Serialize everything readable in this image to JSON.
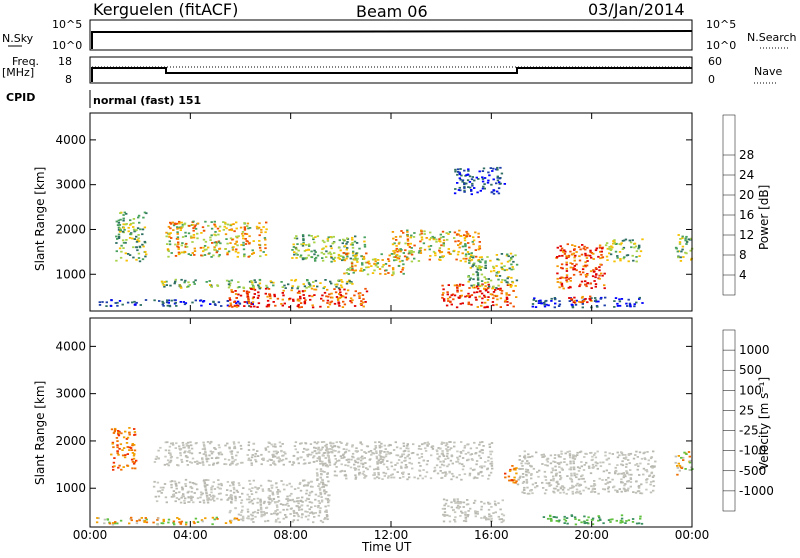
{
  "header": {
    "station": "Kerguelen (fitACF)",
    "beam": "Beam 06",
    "date": "03/Jan/2014"
  },
  "top_panels": {
    "nsky_label": "N.Sky",
    "nsky_ticks": [
      "10^5",
      "10^0"
    ],
    "nsearch_label": "N.Search",
    "nsearch_ticks": [
      "10^5",
      "10^0"
    ],
    "freq_label_1": "Freq.",
    "freq_label_2": "[MHz]",
    "freq_ticks": [
      "18",
      "8"
    ],
    "nave_label": "Nave",
    "nave_ticks": [
      "60",
      "0"
    ],
    "cpid_label": "CPID",
    "cpid_value": "normal (fast) 151"
  },
  "chart_data": [
    {
      "type": "heatmap",
      "name": "power",
      "ylabel": "Slant Range [km]",
      "xlabel": "Time UT",
      "xlim": [
        "00:00",
        "24:00"
      ],
      "ylim": [
        180,
        4600
      ],
      "yticks": [
        "1000",
        "2000",
        "3000",
        "4000"
      ],
      "xticks": [
        "00:00",
        "04:00",
        "08:00",
        "12:00",
        "16:00",
        "20:00",
        "00:00"
      ],
      "colorbar": {
        "label": "Power [dB]",
        "ticks": [
          "4",
          "8",
          "12",
          "16",
          "20",
          "24",
          "28"
        ],
        "colors": [
          "#0000ff",
          "#1e3fa8",
          "#2f6e62",
          "#47a05c",
          "#a7d24a",
          "#f6c000",
          "#f39a00",
          "#f05000",
          "#e00000"
        ]
      },
      "regions": [
        {
          "t0": 0.3,
          "t1": 6.5,
          "r0": 300,
          "r1": 450,
          "level": "low"
        },
        {
          "t0": 1.0,
          "t1": 2.2,
          "r0": 1300,
          "r1": 2400,
          "level": "mid"
        },
        {
          "t0": 2.8,
          "t1": 10.5,
          "r0": 700,
          "r1": 900,
          "level": "mid"
        },
        {
          "t0": 3.0,
          "t1": 7.0,
          "r0": 1400,
          "r1": 2200,
          "level": "high"
        },
        {
          "t0": 5.5,
          "t1": 11.0,
          "r0": 280,
          "r1": 700,
          "level": "peak"
        },
        {
          "t0": 8.0,
          "t1": 11.0,
          "r0": 1300,
          "r1": 1900,
          "level": "mid"
        },
        {
          "t0": 10.0,
          "t1": 12.5,
          "r0": 1000,
          "r1": 1500,
          "level": "high"
        },
        {
          "t0": 12.0,
          "t1": 15.5,
          "r0": 1300,
          "r1": 2000,
          "level": "high"
        },
        {
          "t0": 14.5,
          "t1": 16.5,
          "r0": 2800,
          "r1": 3400,
          "level": "low"
        },
        {
          "t0": 14.0,
          "t1": 17.0,
          "r0": 280,
          "r1": 800,
          "level": "peak"
        },
        {
          "t0": 15.0,
          "t1": 17.0,
          "r0": 700,
          "r1": 1500,
          "level": "mid"
        },
        {
          "t0": 17.5,
          "t1": 22.0,
          "r0": 280,
          "r1": 500,
          "level": "low"
        },
        {
          "t0": 18.5,
          "t1": 20.5,
          "r0": 700,
          "r1": 1700,
          "level": "peak"
        },
        {
          "t0": 19.0,
          "t1": 20.0,
          "r0": 380,
          "r1": 550,
          "level": "peak"
        },
        {
          "t0": 20.5,
          "t1": 22.0,
          "r0": 1300,
          "r1": 1800,
          "level": "mid"
        },
        {
          "t0": 23.3,
          "t1": 24.0,
          "r0": 1300,
          "r1": 1900,
          "level": "mid"
        }
      ]
    },
    {
      "type": "heatmap",
      "name": "velocity",
      "ylabel": "Slant Range [km]",
      "xlabel": "Time UT",
      "xlim": [
        "00:00",
        "24:00"
      ],
      "ylim": [
        180,
        4600
      ],
      "yticks": [
        "1000",
        "2000",
        "3000",
        "4000"
      ],
      "xticks": [
        "00:00",
        "04:00",
        "08:00",
        "12:00",
        "16:00",
        "20:00",
        "00:00"
      ],
      "colorbar": {
        "label": "Velocity [m s⁻¹]",
        "ticks": [
          "1000",
          "500",
          "100",
          "25",
          "-25",
          "-100",
          "-500",
          "-1000"
        ],
        "colors": [
          "#2040c0",
          "#3070a0",
          "#3a9060",
          "#60c040",
          "#c0c0b8",
          "#f0a000",
          "#f07000",
          "#f03000",
          "#e00000"
        ]
      },
      "regions": [
        {
          "t0": 0.8,
          "t1": 1.8,
          "r0": 1400,
          "r1": 2300,
          "level": "neg"
        },
        {
          "t0": 2.5,
          "t1": 10.0,
          "r0": 1500,
          "r1": 2000,
          "level": "grey"
        },
        {
          "t0": 2.5,
          "t1": 9.5,
          "r0": 700,
          "r1": 1200,
          "level": "grey"
        },
        {
          "t0": 5.5,
          "t1": 9.5,
          "r0": 300,
          "r1": 800,
          "level": "grey"
        },
        {
          "t0": 9.0,
          "t1": 16.0,
          "r0": 1200,
          "r1": 2000,
          "level": "grey"
        },
        {
          "t0": 14.0,
          "t1": 16.5,
          "r0": 300,
          "r1": 800,
          "level": "grey"
        },
        {
          "t0": 17.0,
          "t1": 22.5,
          "r0": 900,
          "r1": 1800,
          "level": "grey"
        },
        {
          "t0": 18.0,
          "t1": 22.0,
          "r0": 250,
          "r1": 450,
          "level": "pos"
        },
        {
          "t0": 0.2,
          "t1": 6.0,
          "r0": 250,
          "r1": 400,
          "level": "mix"
        },
        {
          "t0": 16.5,
          "t1": 17.0,
          "r0": 1100,
          "r1": 1500,
          "level": "neg"
        },
        {
          "t0": 23.3,
          "t1": 24.0,
          "r0": 1300,
          "r1": 1800,
          "level": "mix"
        }
      ]
    }
  ]
}
